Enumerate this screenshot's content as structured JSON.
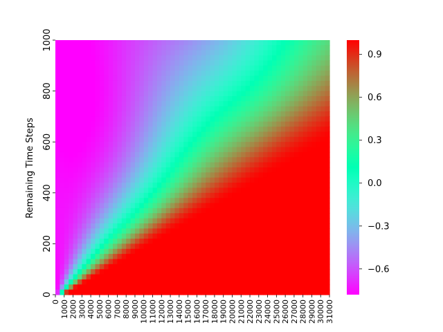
{
  "chart_data": {
    "type": "heatmap",
    "title": "",
    "xlabel": "",
    "ylabel": "Remaining Time Steps",
    "x_ticks": [
      0,
      1000,
      2000,
      3000,
      4000,
      5000,
      6000,
      7000,
      8000,
      9000,
      10000,
      11000,
      12000,
      13000,
      14000,
      15000,
      16000,
      17000,
      18000,
      19000,
      20000,
      21000,
      22000,
      23000,
      24000,
      25000,
      26000,
      27000,
      28000,
      29000,
      30000,
      31000
    ],
    "y_ticks": [
      0,
      200,
      400,
      600,
      800,
      1000
    ],
    "xlim": [
      0,
      31000
    ],
    "ylim": [
      0,
      1000
    ],
    "colorbar": {
      "range": [
        -0.78,
        1.0
      ],
      "ticks": [
        -0.6,
        -0.3,
        0.0,
        0.3,
        0.6,
        0.9
      ],
      "tick_labels": [
        "−0.6",
        "−0.3",
        "0.0",
        "0.3",
        "0.6",
        "0.9"
      ],
      "colormap": "rainbow"
    },
    "field": {
      "description_values": "value rises from about -0.78 at high remaining steps / early x toward 1.0 below a diagonal boundary",
      "samples": [
        {
          "x": 0,
          "y": 1000,
          "value": -0.72
        },
        {
          "x": 0,
          "y": 700,
          "value": -0.78
        },
        {
          "x": 0,
          "y": 400,
          "value": -0.6
        },
        {
          "x": 0,
          "y": 100,
          "value": -0.3
        },
        {
          "x": 4000,
          "y": 900,
          "value": -0.6
        },
        {
          "x": 8000,
          "y": 800,
          "value": -0.35
        },
        {
          "x": 12000,
          "y": 950,
          "value": -0.1
        },
        {
          "x": 16000,
          "y": 900,
          "value": 0.1
        },
        {
          "x": 22000,
          "y": 950,
          "value": 0.4
        },
        {
          "x": 28000,
          "y": 950,
          "value": 0.55
        },
        {
          "x": 31000,
          "y": 800,
          "value": 0.85
        },
        {
          "x": 10000,
          "y": 400,
          "value": 0.6
        },
        {
          "x": 20000,
          "y": 300,
          "value": 1.0
        },
        {
          "x": 31000,
          "y": 100,
          "value": 1.0
        }
      ]
    }
  }
}
